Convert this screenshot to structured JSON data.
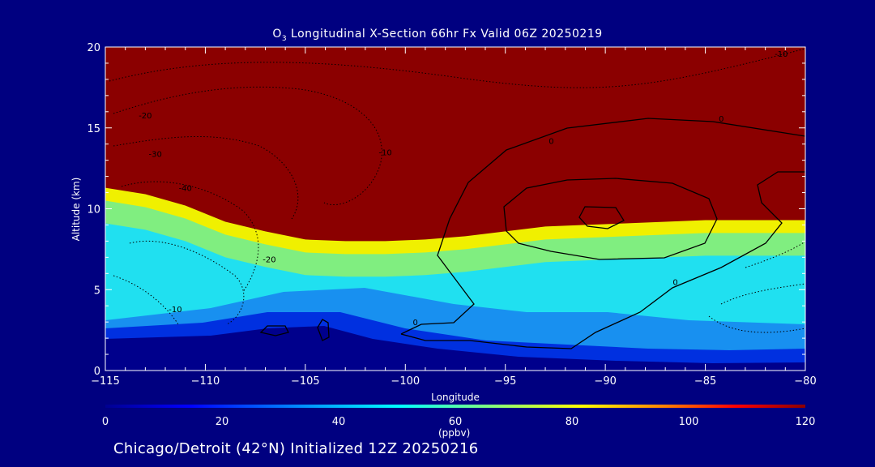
{
  "title": {
    "prefix": "O",
    "sub": "3",
    "rest": " Longitudinal X-Section 66hr  Fx Valid 06Z 20250219"
  },
  "footer": "Chicago/Detroit (42°N) Initialized 12Z 20250216",
  "chart_data": {
    "type": "heatmap",
    "variable": "O3",
    "xlabel": "Longitude",
    "ylabel": "Altitude (km)",
    "xlim": [
      -115,
      -80
    ],
    "ylim": [
      0,
      20
    ],
    "xticks": [
      -115,
      -110,
      -105,
      -100,
      -95,
      -90,
      -85,
      -80
    ],
    "xtick_labels": [
      "−115",
      "−110",
      "−105",
      "−100",
      "−95",
      "−90",
      "−85",
      "−80"
    ],
    "yticks": [
      0,
      5,
      10,
      15,
      20
    ],
    "colorbar": {
      "min": 0,
      "max": 120,
      "ticks": [
        0,
        20,
        40,
        60,
        80,
        100,
        120
      ],
      "unit": "(ppbv)"
    },
    "tropopause_height_km": {
      "lon": [
        -115,
        -113,
        -111,
        -109,
        -107,
        -105,
        -103,
        -101,
        -99,
        -97,
        -95,
        -93,
        -91,
        -89,
        -87,
        -85,
        -83,
        -81,
        -80
      ],
      "height": [
        11.3,
        10.9,
        10.2,
        9.2,
        8.6,
        8.1,
        8.0,
        8.0,
        8.1,
        8.3,
        8.6,
        8.9,
        9.0,
        9.1,
        9.2,
        9.3,
        9.3,
        9.3,
        9.3
      ]
    },
    "contour_labels": [
      {
        "text": "0",
        "lon": -86.5,
        "alt": 5.3
      },
      {
        "text": "0",
        "lon": -92.7,
        "alt": 14.0
      },
      {
        "text": "0",
        "lon": -84.2,
        "alt": 15.4
      },
      {
        "text": "0",
        "lon": -99.5,
        "alt": 2.8
      },
      {
        "text": "-10",
        "lon": -81.2,
        "alt": 19.4
      },
      {
        "text": "-10",
        "lon": -101.0,
        "alt": 13.3
      },
      {
        "text": "-10",
        "lon": -111.5,
        "alt": 3.6
      },
      {
        "text": "-20",
        "lon": -113.0,
        "alt": 15.6
      },
      {
        "text": "-20",
        "lon": -106.8,
        "alt": 6.7
      },
      {
        "text": "-30",
        "lon": -112.5,
        "alt": 13.2
      },
      {
        "text": "-40",
        "lon": -111.0,
        "alt": 11.1
      }
    ]
  }
}
